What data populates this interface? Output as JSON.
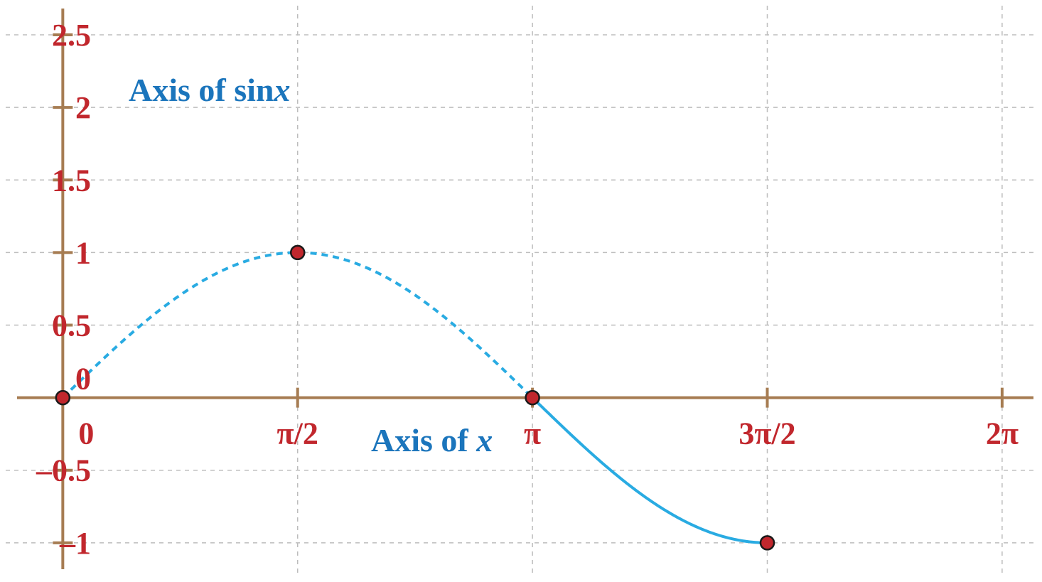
{
  "chart_data": {
    "type": "line",
    "title": "",
    "xlabel": {
      "prefix": "Axis of ",
      "var": "x"
    },
    "ylabel": {
      "prefix": "Axis of sin",
      "var": "x"
    },
    "x_ticks": [
      {
        "value": 0,
        "label": "0"
      },
      {
        "value": 1.5708,
        "label": "π/2"
      },
      {
        "value": 3.1416,
        "label": "π"
      },
      {
        "value": 4.7124,
        "label": "3π/2"
      },
      {
        "value": 6.2832,
        "label": "2π"
      }
    ],
    "y_ticks": [
      {
        "value": 2.5,
        "label": "2.5"
      },
      {
        "value": 2,
        "label": "2"
      },
      {
        "value": 1.5,
        "label": "1.5"
      },
      {
        "value": 1,
        "label": "1"
      },
      {
        "value": 0.5,
        "label": "0.5"
      },
      {
        "value": 0,
        "label": "0"
      },
      {
        "value": -0.5,
        "label": "–0.5"
      },
      {
        "value": -1,
        "label": "–1"
      }
    ],
    "xlim": [
      -0.42,
      6.55
    ],
    "ylim": [
      -1.27,
      2.74
    ],
    "grid": true,
    "series": [
      {
        "function": "sin",
        "x_start": 0,
        "x_end": 3.1416,
        "style": "dashed"
      },
      {
        "function": "sin",
        "x_start": 3.1416,
        "x_end": 4.7124,
        "style": "solid"
      }
    ],
    "points": [
      {
        "x": 0,
        "y": 0
      },
      {
        "x": 1.5708,
        "y": 1
      },
      {
        "x": 3.1416,
        "y": 0
      },
      {
        "x": 4.7124,
        "y": -1
      }
    ],
    "colors": {
      "axis": "#A67C52",
      "grid": "#BDBDBD",
      "curve": "#29ABE2",
      "point_fill": "#C1272D",
      "point_stroke": "#1A1A1A",
      "tick_label": "#C1272D",
      "axis_title": "#1B75BC"
    }
  }
}
